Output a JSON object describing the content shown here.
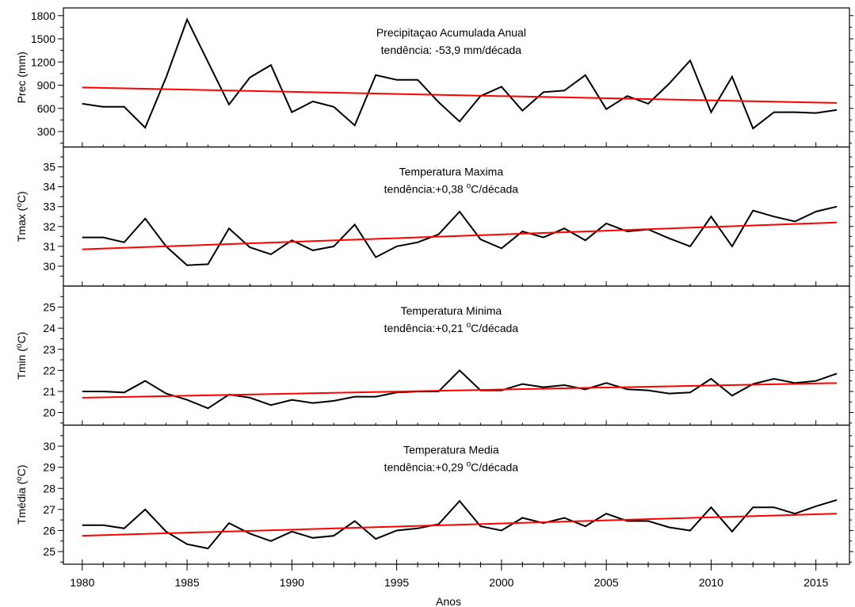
{
  "chart_data": {
    "type": "line",
    "xlabel": "Anos",
    "x_ticks": [
      1980,
      1985,
      1990,
      1995,
      2000,
      2005,
      2010,
      2015
    ],
    "xlim": [
      1979.1,
      2016.6
    ],
    "x": [
      1980,
      1981,
      1982,
      1983,
      1984,
      1985,
      1986,
      1987,
      1988,
      1989,
      1990,
      1991,
      1992,
      1993,
      1994,
      1995,
      1996,
      1997,
      1998,
      1999,
      2000,
      2001,
      2002,
      2003,
      2004,
      2005,
      2006,
      2007,
      2008,
      2009,
      2010,
      2011,
      2012,
      2013,
      2014,
      2015,
      2016
    ],
    "panels": [
      {
        "ylabel": "Prec (mm)",
        "ylabel_deg": false,
        "ylim": [
          100,
          1900
        ],
        "y_ticks": [
          300,
          600,
          900,
          1200,
          1500,
          1800
        ],
        "annotation_title": "Precipitaçao Acumulada Anual",
        "annotation_trend": "tendência: -53,9 mm/década",
        "series": {
          "color": "#000000",
          "values": [
            660,
            620,
            620,
            350,
            1000,
            1750,
            1200,
            650,
            1000,
            1160,
            550,
            690,
            620,
            380,
            1030,
            970,
            970,
            680,
            430,
            760,
            880,
            570,
            810,
            830,
            1030,
            590,
            760,
            660,
            920,
            1220,
            550,
            1010,
            340,
            550,
            550,
            540,
            580
          ]
        },
        "trend": {
          "color": "#ff0000",
          "start": 870,
          "end": 670
        }
      },
      {
        "ylabel": "Tmax",
        "ylabel_deg": true,
        "ylim": [
          29,
          36
        ],
        "y_ticks": [
          30,
          31,
          32,
          33,
          34,
          35
        ],
        "annotation_title": "Temperatura Maxima",
        "annotation_trend_prefix": "tendência:+0,38",
        "annotation_trend_suffix": "C/década",
        "series": {
          "color": "#000000",
          "values": [
            31.45,
            31.45,
            31.2,
            32.4,
            31.0,
            30.05,
            30.1,
            31.9,
            30.95,
            30.6,
            31.3,
            30.8,
            31.0,
            32.1,
            30.45,
            31.0,
            31.2,
            31.6,
            32.75,
            31.35,
            30.9,
            31.75,
            31.45,
            31.9,
            31.3,
            32.15,
            31.75,
            31.85,
            31.4,
            31.0,
            32.5,
            31.0,
            32.8,
            32.5,
            32.25,
            32.75,
            33.0
          ]
        },
        "trend": {
          "color": "#ff0000",
          "start": 30.85,
          "end": 32.2
        }
      },
      {
        "ylabel": "Tmin",
        "ylabel_deg": true,
        "ylim": [
          19.4,
          26
        ],
        "y_ticks": [
          20,
          21,
          22,
          23,
          24,
          25
        ],
        "annotation_title": "Temperatura Minima",
        "annotation_trend_prefix": "tendência:+0,21",
        "annotation_trend_suffix": "C/década",
        "series": {
          "color": "#000000",
          "values": [
            21.0,
            21.0,
            20.95,
            21.5,
            20.9,
            20.6,
            20.2,
            20.85,
            20.7,
            20.35,
            20.6,
            20.45,
            20.55,
            20.75,
            20.75,
            20.95,
            21.0,
            21.0,
            22.0,
            21.05,
            21.05,
            21.35,
            21.2,
            21.3,
            21.1,
            21.4,
            21.1,
            21.05,
            20.9,
            20.95,
            21.6,
            20.8,
            21.35,
            21.6,
            21.4,
            21.5,
            21.85
          ]
        },
        "trend": {
          "color": "#ff0000",
          "start": 20.7,
          "end": 21.4
        }
      },
      {
        "ylabel": "Tmédia",
        "ylabel_deg": true,
        "ylim": [
          24.4,
          31
        ],
        "y_ticks": [
          25,
          26,
          27,
          28,
          29,
          30
        ],
        "annotation_title": "Temperatura Media",
        "annotation_trend_prefix": "tendência:+0,29",
        "annotation_trend_suffix": "C/década",
        "series": {
          "color": "#000000",
          "values": [
            26.25,
            26.25,
            26.1,
            27.0,
            25.95,
            25.35,
            25.15,
            26.35,
            25.85,
            25.5,
            25.95,
            25.65,
            25.75,
            26.45,
            25.6,
            26.0,
            26.1,
            26.3,
            27.4,
            26.2,
            26.0,
            26.6,
            26.35,
            26.6,
            26.2,
            26.8,
            26.45,
            26.45,
            26.15,
            26.0,
            27.1,
            25.95,
            27.1,
            27.1,
            26.8,
            27.15,
            27.45
          ]
        },
        "trend": {
          "color": "#ff0000",
          "start": 25.75,
          "end": 26.8
        }
      }
    ]
  }
}
